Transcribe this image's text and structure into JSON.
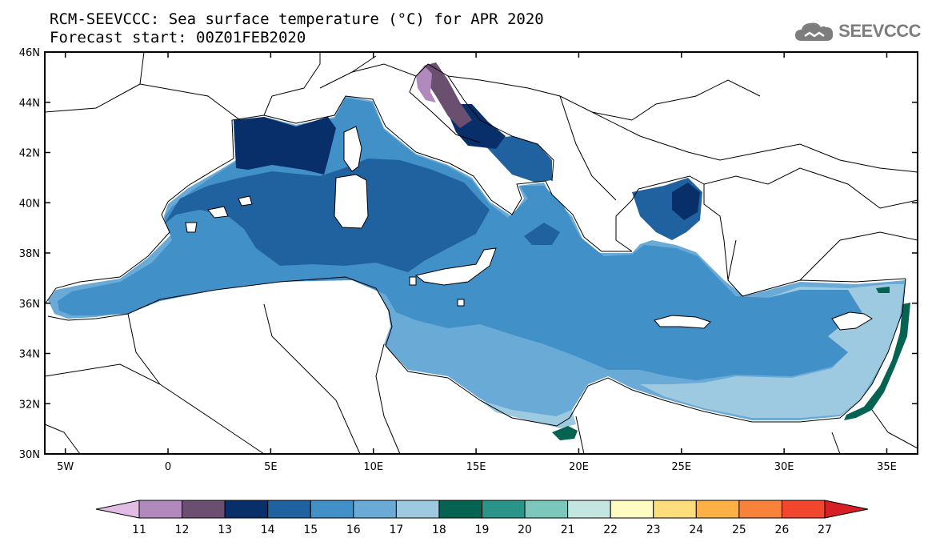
{
  "title": {
    "line1": "RCM-SEEVCCC: Sea surface temperature (°C) for APR 2020",
    "line2": "Forecast start: 00Z01FEB2020"
  },
  "logo": {
    "text": "SEEVCCC",
    "icon": "cloud-icon"
  },
  "map": {
    "lat_labels": [
      "46N",
      "44N",
      "42N",
      "40N",
      "38N",
      "36N",
      "34N",
      "32N",
      "30N"
    ],
    "lon_labels": [
      "5W",
      "0",
      "5E",
      "10E",
      "15E",
      "20E",
      "25E",
      "30E",
      "35E"
    ],
    "lat_range": [
      30,
      46
    ],
    "lon_range": [
      -6,
      36.5
    ]
  },
  "colorbar": {
    "tick_labels": [
      "11",
      "12",
      "13",
      "14",
      "15",
      "16",
      "17",
      "18",
      "19",
      "20",
      "21",
      "22",
      "23",
      "24",
      "25",
      "26",
      "27"
    ],
    "colors": [
      "#e2bde3",
      "#b089bd",
      "#6b4f70",
      "#082f6a",
      "#2061a0",
      "#4290c8",
      "#6aaad7",
      "#9ecae1",
      "#056451",
      "#2a9488",
      "#7cc7bb",
      "#c3e6e0",
      "#fefbc3",
      "#fede7c",
      "#fcb045",
      "#f9823a",
      "#f2472e",
      "#d71f26"
    ]
  },
  "legend_colors": {
    "land": "#ffffff",
    "coast": "#000000",
    "sst_11_12": "#b089bd",
    "sst_12_13": "#6b4f70",
    "sst_13_14": "#082f6a",
    "sst_14_15": "#2061a0",
    "sst_15_16": "#4290c8",
    "sst_16_17": "#6aaad7",
    "sst_17_18": "#9ecae1",
    "sst_18_19": "#056451"
  }
}
